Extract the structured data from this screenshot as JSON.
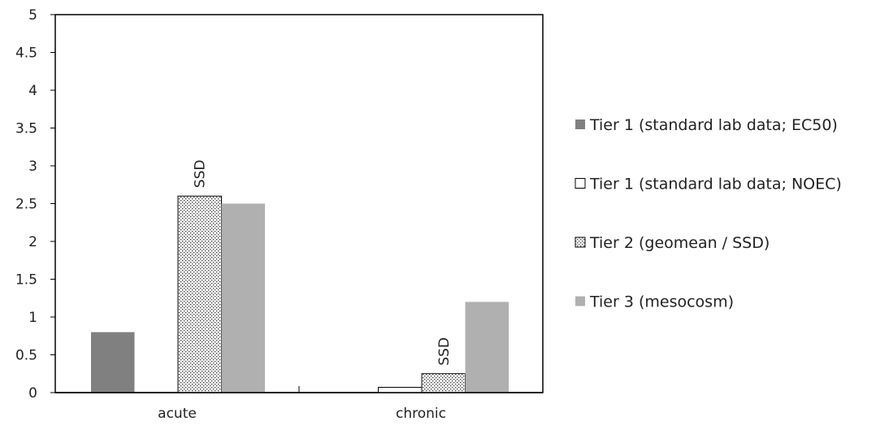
{
  "chart_data": {
    "type": "bar",
    "categories": [
      "acute",
      "chronic"
    ],
    "ylim": [
      0,
      5
    ],
    "yticks": [
      "0",
      "0.5",
      "1",
      "1.5",
      "2",
      "2.5",
      "3",
      "3.5",
      "4",
      "4.5",
      "5"
    ],
    "xlabel": "",
    "ylabel": "",
    "grid": false,
    "legend_position": "right",
    "series": [
      {
        "name": "Tier 1 (standard lab data; EC50)",
        "values": [
          0.8,
          0
        ],
        "fill": "#808080",
        "pattern": "solid"
      },
      {
        "name": "Tier 1 (standard lab data; NOEC)",
        "values": [
          0,
          0.07
        ],
        "fill": "#ffffff",
        "pattern": "outline"
      },
      {
        "name": "Tier 2 (geomean / SSD)",
        "values": [
          2.6,
          0.25
        ],
        "fill": "#ffffff",
        "pattern": "dots"
      },
      {
        "name": "Tier 3 (mesocosm)",
        "values": [
          2.5,
          1.2
        ],
        "fill": "#b0b0b0",
        "pattern": "solid"
      }
    ],
    "annotations": [
      {
        "text": "SSD",
        "category": "acute",
        "series": "Tier 2 (geomean / SSD)"
      },
      {
        "text": "SSD",
        "category": "chronic",
        "series": "Tier 2 (geomean / SSD)"
      }
    ]
  }
}
